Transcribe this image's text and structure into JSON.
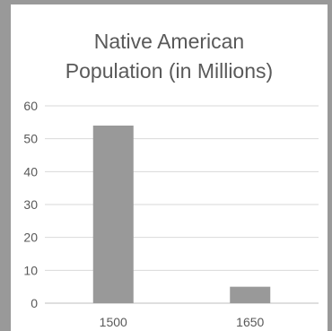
{
  "chart_data": {
    "type": "bar",
    "title_lines": [
      "Native American",
      "Population (in Millions)"
    ],
    "categories": [
      "1500",
      "1650"
    ],
    "values": [
      54,
      5
    ],
    "ylim": [
      0,
      60
    ],
    "yticks": [
      "0",
      "10",
      "20",
      "30",
      "40",
      "50",
      "60"
    ],
    "grid": true,
    "legend": "none",
    "bar_color": "#999999",
    "grid_color": "#d9d9d9"
  }
}
